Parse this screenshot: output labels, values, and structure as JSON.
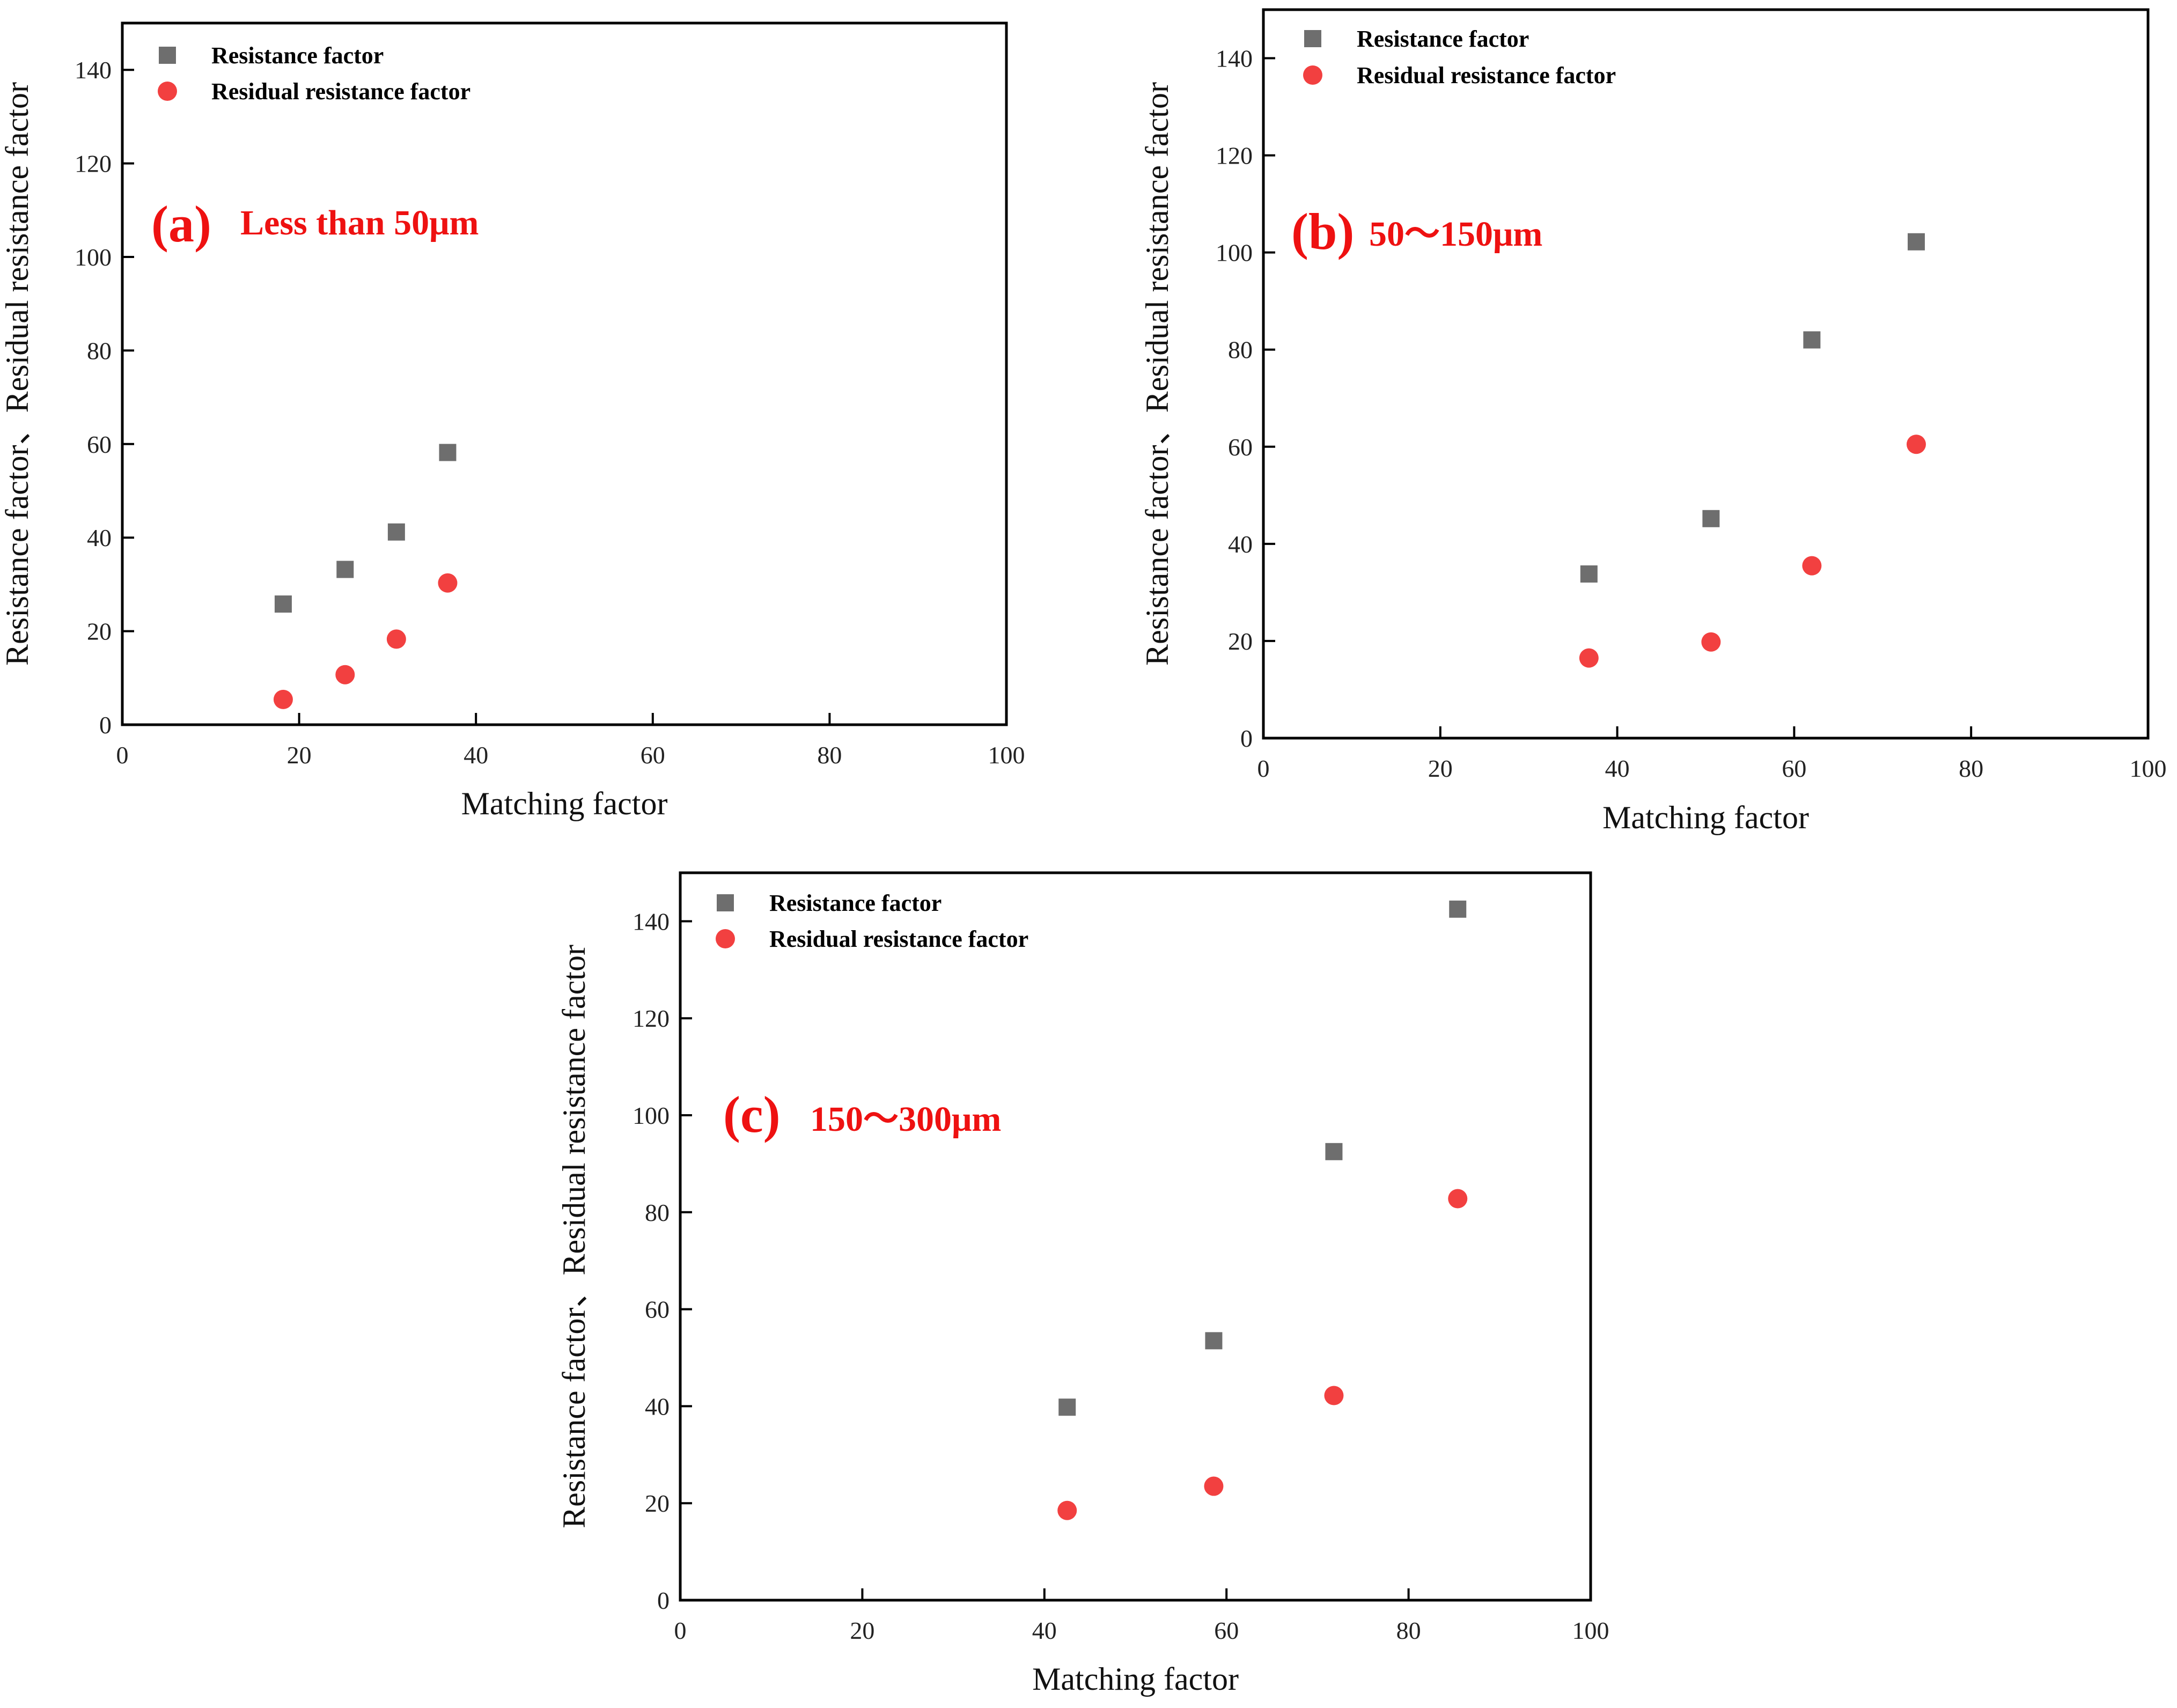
{
  "figure": {
    "colors": {
      "resistance": "#6e6e6e",
      "residual": "#f24040",
      "annotation": "#ee1111",
      "axis": "#000000"
    },
    "marker_icons": {
      "resistance": "square-marker-icon",
      "residual": "circle-marker-icon"
    }
  },
  "chart_data": [
    {
      "type": "scatter",
      "annotation": {
        "letter": "(a)",
        "text": "Less than 50μm"
      },
      "xlabel": "Matching factor",
      "ylabel": "Resistance factor、Residual resistance factor",
      "xlim": [
        0,
        100
      ],
      "ylim": [
        0,
        150
      ],
      "xticks": [
        "0",
        "20",
        "40",
        "60",
        "80",
        "100"
      ],
      "yticks": [
        "0",
        "20",
        "40",
        "60",
        "80",
        "100",
        "120",
        "140"
      ],
      "grid": false,
      "legend_position": "top-left",
      "series": [
        {
          "name": "Resistance factor",
          "marker": "square",
          "x": [
            18.2,
            25.2,
            31.0,
            36.8
          ],
          "y": [
            25.8,
            33.2,
            41.2,
            58.2
          ]
        },
        {
          "name": "Residual resistance factor",
          "marker": "circle",
          "x": [
            18.2,
            25.2,
            31.0,
            36.8
          ],
          "y": [
            5.4,
            10.7,
            18.3,
            30.3
          ]
        }
      ]
    },
    {
      "type": "scatter",
      "annotation": {
        "letter": "(b)",
        "text": "50～150μm"
      },
      "xlabel": "Matching factor",
      "ylabel": "Resistance factor、Residual resistance factor",
      "xlim": [
        0,
        100
      ],
      "ylim": [
        0,
        150
      ],
      "xticks": [
        "0",
        "20",
        "40",
        "60",
        "80",
        "100"
      ],
      "yticks": [
        "0",
        "20",
        "40",
        "60",
        "80",
        "100",
        "120",
        "140"
      ],
      "grid": false,
      "legend_position": "top-left",
      "series": [
        {
          "name": "Resistance factor",
          "marker": "square",
          "x": [
            36.8,
            50.6,
            62.0,
            73.8
          ],
          "y": [
            33.8,
            45.2,
            82.0,
            102.2
          ]
        },
        {
          "name": "Residual resistance factor",
          "marker": "circle",
          "x": [
            36.8,
            50.6,
            62.0,
            73.8
          ],
          "y": [
            16.5,
            19.8,
            35.5,
            60.5
          ]
        }
      ]
    },
    {
      "type": "scatter",
      "annotation": {
        "letter": "(c)",
        "text": "150～300μm"
      },
      "xlabel": "Matching factor",
      "ylabel": "Resistance factor、Residual resistance factor",
      "xlim": [
        0,
        100
      ],
      "ylim": [
        0,
        150
      ],
      "xticks": [
        "0",
        "20",
        "40",
        "60",
        "80",
        "100"
      ],
      "yticks": [
        "0",
        "20",
        "40",
        "60",
        "80",
        "100",
        "120",
        "140"
      ],
      "grid": false,
      "legend_position": "top-left",
      "series": [
        {
          "name": "Resistance factor",
          "marker": "square",
          "x": [
            42.5,
            58.6,
            71.8,
            85.4
          ],
          "y": [
            39.8,
            53.5,
            92.5,
            142.5
          ]
        },
        {
          "name": "Residual resistance factor",
          "marker": "circle",
          "x": [
            42.5,
            58.6,
            71.8,
            85.4
          ],
          "y": [
            18.5,
            23.5,
            42.2,
            82.8
          ]
        }
      ]
    }
  ]
}
